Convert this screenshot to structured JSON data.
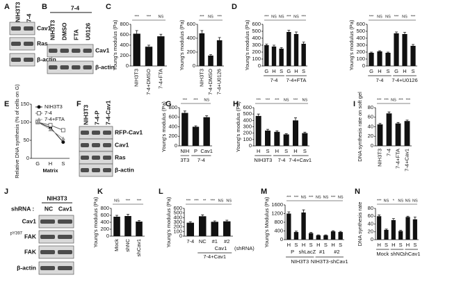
{
  "panel_letters": [
    "A",
    "B",
    "C",
    "D",
    "E",
    "F",
    "G",
    "H",
    "I",
    "J",
    "K",
    "L",
    "M",
    "N"
  ],
  "blots": [
    {
      "lanes": [
        "NIH3T3",
        "7-4"
      ],
      "rows": [
        "Cav1",
        "Ras",
        "β-actin"
      ]
    },
    {
      "header": "7-4",
      "lanes": [
        "NIH3T3",
        "DMSO",
        "FTA",
        "U0126"
      ],
      "rows": [
        "Cav1",
        "β-actin"
      ]
    },
    {
      "lanes": [
        "NIH3T3",
        "7-4-P",
        "7-4-Cav1"
      ],
      "rows": [
        "RFP-Cav1",
        "Cav1",
        "Ras",
        "β-actin"
      ]
    },
    {
      "header": "NIH3T3",
      "prefix": "shRNA :",
      "lanes": [
        "NC",
        "Cav1"
      ],
      "rows": [
        "Cav1",
        {
          "sup": "pY397",
          "label": "FAK"
        },
        "FAK",
        "β-actin"
      ]
    }
  ],
  "chart_data": [
    {
      "type": "bar",
      "ylabel": "Young's modulus (Pa)",
      "categories": [
        "NIH3T3",
        "7-4+DMSO",
        "7-4+FTA"
      ],
      "values": [
        620,
        370,
        570
      ],
      "errors": [
        60,
        30,
        40
      ],
      "ylim": [
        0,
        800
      ],
      "yticks": [
        0,
        200,
        400,
        600,
        800
      ],
      "rotate_labels": true,
      "color": "#111111",
      "significance": [
        "***",
        "***",
        "NS"
      ]
    },
    {
      "type": "bar",
      "ylabel": "Young's modulus (Pa)",
      "categories": [
        "NIH3T3",
        "7-4+DMSO",
        "7-4+U0126"
      ],
      "values": [
        470,
        150,
        370
      ],
      "errors": [
        40,
        15,
        40
      ],
      "ylim": [
        0,
        600
      ],
      "yticks": [
        0,
        200,
        400,
        600
      ],
      "rotate_labels": true,
      "color": "#111111",
      "significance": [
        "***",
        "NS",
        "***"
      ]
    },
    {
      "type": "bar",
      "ylabel": "Young's modulus (Pa)",
      "groups": [
        {
          "label": "7-4",
          "categories": [
            "G",
            "H",
            "S"
          ],
          "values": [
            300,
            280,
            250
          ],
          "errors": [
            15,
            20,
            15
          ]
        },
        {
          "label": "7-4+FTA",
          "categories": [
            "G",
            "H",
            "S"
          ],
          "values": [
            490,
            460,
            320
          ],
          "errors": [
            25,
            30,
            25
          ]
        }
      ],
      "ylim": [
        0,
        600
      ],
      "yticks": [
        0,
        100,
        200,
        300,
        400,
        500,
        600
      ],
      "color": "#111111",
      "significance": [
        "***",
        "NS",
        "NS",
        "***",
        "NS",
        "***"
      ]
    },
    {
      "type": "bar",
      "ylabel": "Young's modulus (Pa)",
      "groups": [
        {
          "label": "7-4",
          "categories": [
            "G",
            "H",
            "S"
          ],
          "values": [
            190,
            210,
            190
          ],
          "errors": [
            10,
            10,
            10
          ]
        },
        {
          "label": "7-4+U0126",
          "categories": [
            "G",
            "H",
            "S"
          ],
          "values": [
            470,
            460,
            290
          ],
          "errors": [
            20,
            25,
            20
          ]
        }
      ],
      "ylim": [
        0,
        600
      ],
      "yticks": [
        0,
        100,
        200,
        300,
        400,
        500,
        600
      ],
      "color": "#111111",
      "significance": [
        "***",
        "NS",
        "NS",
        "***",
        "NS",
        "***"
      ]
    },
    {
      "type": "line",
      "ylabel": "Relative DNA synthesis (% of cells on G)",
      "xlabel": "Matrix",
      "categories": [
        "G",
        "H",
        "S"
      ],
      "series": [
        {
          "name": "NIH3T3",
          "color": "#111111",
          "marker": "circle",
          "values": [
            100,
            85,
            45
          ]
        },
        {
          "name": "7-4",
          "color": "#555555",
          "marker": "square-open",
          "values": [
            100,
            92,
            78
          ]
        },
        {
          "name": "7-4+FTA",
          "color": "#999999",
          "marker": "triangle",
          "values": [
            100,
            80,
            55
          ]
        }
      ],
      "ylim": [
        0,
        150
      ],
      "yticks": [
        0,
        50,
        100,
        150
      ]
    },
    {
      "type": "bar",
      "ylabel": "Young's modulus (Pa)",
      "groups": [
        {
          "label": "3T3",
          "categories": [
            "NIH"
          ],
          "values": [
            690
          ],
          "errors": [
            40
          ]
        },
        {
          "label": "7-4",
          "categories": [
            "P",
            "Cav1"
          ],
          "values": [
            400,
            600
          ],
          "errors": [
            20,
            30
          ]
        }
      ],
      "ylim": [
        0,
        800
      ],
      "yticks": [
        0,
        200,
        400,
        600,
        800
      ],
      "color": "#111111",
      "significance": [
        "***",
        "***",
        "NS"
      ]
    },
    {
      "type": "bar",
      "ylabel": "Young's modulus (Pa)",
      "groups": [
        {
          "label": "NIH3T3",
          "categories": [
            "H",
            "S"
          ],
          "values": [
            470,
            240
          ],
          "errors": [
            30,
            20
          ]
        },
        {
          "label": "7-4",
          "categories": [
            "H",
            "S"
          ],
          "values": [
            220,
            180
          ],
          "errors": [
            15,
            10
          ]
        },
        {
          "label": "7-4+Cav1",
          "categories": [
            "H",
            "S"
          ],
          "values": [
            400,
            200
          ],
          "errors": [
            40,
            15
          ]
        }
      ],
      "ylim": [
        0,
        600
      ],
      "yticks": [
        0,
        100,
        200,
        300,
        400,
        500,
        600
      ],
      "color": "#111111",
      "significance": [
        "***",
        "***",
        "***",
        "NS",
        "***",
        "NS"
      ]
    },
    {
      "type": "bar",
      "ylabel": "DNA synthesis rate on soft gel",
      "categories": [
        "NIH3T3",
        "7-4",
        "7-4+FTA",
        "7-4+Cav1"
      ],
      "values": [
        45,
        68,
        47,
        52
      ],
      "errors": [
        2,
        3,
        2,
        2
      ],
      "ylim": [
        0,
        80
      ],
      "yticks": [
        0,
        20,
        40,
        60,
        80
      ],
      "rotate_labels": true,
      "color": "#111111",
      "significance": [
        "***",
        "***",
        "NS",
        "***",
        "***"
      ]
    },
    {
      "type": "bar",
      "ylabel": "Young's modulus (Pa)",
      "categories": [
        "Mock",
        "shNC",
        "shCav1"
      ],
      "values": [
        560,
        580,
        420
      ],
      "errors": [
        40,
        50,
        30
      ],
      "ylim": [
        0,
        800
      ],
      "yticks": [
        0,
        200,
        400,
        600,
        800
      ],
      "rotate_labels": true,
      "color": "#111111",
      "significance": [
        "NS",
        "***",
        "***"
      ]
    },
    {
      "type": "bar",
      "ylabel": "Young's modulus (Pa)",
      "categories": [
        "7-4",
        "NC",
        "#1",
        "#2"
      ],
      "values": [
        290,
        430,
        310,
        320
      ],
      "errors": [
        20,
        30,
        20,
        25
      ],
      "ylim": [
        0,
        600
      ],
      "yticks": [
        0,
        100,
        200,
        300,
        400,
        500,
        600
      ],
      "color": "#111111",
      "significance": [
        "***",
        "***",
        "**",
        "***",
        "NS",
        "NS"
      ],
      "notes_below": [
        "Cav1",
        "7-4+Cav1",
        "(shRNA)"
      ]
    },
    {
      "type": "bar",
      "ylabel": "Young's Modulus (Pa)",
      "groups": [
        {
          "label": "NIH3T3",
          "subgroups": [
            {
              "label": "P",
              "categories": [
                "H",
                "S"
              ],
              "values": [
                1200,
                350
              ],
              "errors": [
                80,
                40
              ]
            },
            {
              "label": "shLacZ",
              "categories": [
                "H",
                "S"
              ],
              "values": [
                1250,
                300
              ],
              "errors": [
                120,
                30
              ]
            }
          ]
        },
        {
          "label": "NIH3T3-shCav1",
          "subgroups": [
            {
              "label": "#1",
              "categories": [
                "H",
                "S"
              ],
              "values": [
                200,
                200
              ],
              "errors": [
                20,
                20
              ]
            },
            {
              "label": "#2",
              "categories": [
                "H",
                "S"
              ],
              "values": [
                380,
                350
              ],
              "errors": [
                30,
                30
              ]
            }
          ]
        }
      ],
      "ylim": [
        0,
        1600
      ],
      "yticks": [
        0,
        400,
        800,
        1200,
        1600
      ],
      "color": "#111111",
      "significance": [
        "***",
        "***",
        "NS",
        "***",
        "NS",
        "NS",
        "***",
        "NS"
      ]
    },
    {
      "type": "bar",
      "ylabel": "DNA synthesis rate",
      "groups": [
        {
          "label": "Mock",
          "categories": [
            "H",
            "S"
          ],
          "values": [
            60,
            25
          ],
          "errors": [
            3,
            2
          ]
        },
        {
          "label": "shNC",
          "categories": [
            "H",
            "S"
          ],
          "values": [
            50,
            22
          ],
          "errors": [
            4,
            2
          ]
        },
        {
          "label": "shCav1",
          "categories": [
            "H",
            "S"
          ],
          "values": [
            58,
            52
          ],
          "errors": [
            2,
            6
          ]
        }
      ],
      "ylim": [
        0,
        80
      ],
      "yticks": [
        0,
        20,
        40,
        60,
        80
      ],
      "color": "#111111",
      "significance": [
        "***",
        "NS",
        "*",
        "NS",
        "NS",
        "NS"
      ]
    }
  ]
}
